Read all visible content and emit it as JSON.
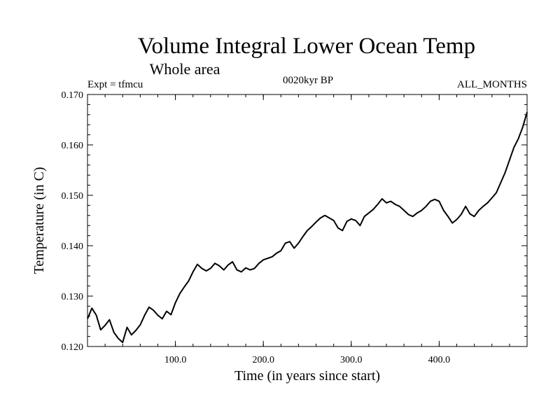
{
  "chart_data": {
    "type": "line",
    "title": "Volume Integral Lower Ocean Temp",
    "subtitle": "Whole area",
    "annotations": {
      "experiment": "Expt = tfmcu",
      "period": "0020kyr BP",
      "months": "ALL_MONTHS"
    },
    "xlabel": "Time (in years since start)",
    "ylabel": "Temperature (in C)",
    "xlim": [
      0,
      500
    ],
    "ylim": [
      0.12,
      0.17
    ],
    "x_ticks": [
      100,
      200,
      300,
      400
    ],
    "x_tick_labels": [
      "100.0",
      "200.0",
      "300.0",
      "400.0"
    ],
    "y_ticks": [
      0.12,
      0.13,
      0.14,
      0.15,
      0.16,
      0.17
    ],
    "y_tick_labels": [
      "0.120",
      "0.130",
      "0.140",
      "0.150",
      "0.160",
      "0.170"
    ],
    "grid": false,
    "series": [
      {
        "color": "#000000",
        "x": [
          0,
          5,
          10,
          15,
          20,
          25,
          30,
          35,
          40,
          45,
          50,
          55,
          60,
          65,
          70,
          75,
          80,
          85,
          90,
          95,
          100,
          105,
          110,
          115,
          120,
          125,
          130,
          135,
          140,
          145,
          150,
          155,
          160,
          165,
          170,
          175,
          180,
          185,
          190,
          195,
          200,
          205,
          210,
          215,
          220,
          225,
          230,
          235,
          240,
          245,
          250,
          255,
          260,
          265,
          270,
          275,
          280,
          285,
          290,
          295,
          300,
          305,
          310,
          315,
          320,
          325,
          330,
          335,
          340,
          345,
          350,
          355,
          360,
          365,
          370,
          375,
          380,
          385,
          390,
          395,
          400,
          405,
          410,
          415,
          420,
          425,
          430,
          435,
          440,
          445,
          450,
          455,
          460,
          465,
          470,
          475,
          480,
          485,
          490,
          495,
          500
        ],
        "values": [
          0.1255,
          0.1276,
          0.1262,
          0.1233,
          0.1242,
          0.1253,
          0.1228,
          0.1216,
          0.1208,
          0.1238,
          0.1223,
          0.1232,
          0.1243,
          0.1262,
          0.1278,
          0.1272,
          0.1262,
          0.1255,
          0.127,
          0.1263,
          0.1287,
          0.1305,
          0.1318,
          0.133,
          0.1348,
          0.1363,
          0.1355,
          0.135,
          0.1355,
          0.1365,
          0.136,
          0.1352,
          0.1362,
          0.1368,
          0.1352,
          0.1348,
          0.1356,
          0.1352,
          0.1355,
          0.1365,
          0.1372,
          0.1375,
          0.1378,
          0.1385,
          0.139,
          0.1405,
          0.1408,
          0.1395,
          0.1405,
          0.1418,
          0.143,
          0.1438,
          0.1447,
          0.1455,
          0.146,
          0.1455,
          0.145,
          0.1435,
          0.143,
          0.1448,
          0.1453,
          0.145,
          0.144,
          0.1458,
          0.1465,
          0.1472,
          0.1482,
          0.1493,
          0.1485,
          0.1488,
          0.1482,
          0.1478,
          0.147,
          0.1462,
          0.1458,
          0.1465,
          0.147,
          0.1478,
          0.1488,
          0.1492,
          0.1488,
          0.147,
          0.1458,
          0.1445,
          0.1452,
          0.1462,
          0.1478,
          0.1463,
          0.1458,
          0.147,
          0.1478,
          0.1485,
          0.1495,
          0.1505,
          0.1525,
          0.1545,
          0.157,
          0.1595,
          0.1612,
          0.1635,
          0.1665
        ]
      }
    ]
  }
}
